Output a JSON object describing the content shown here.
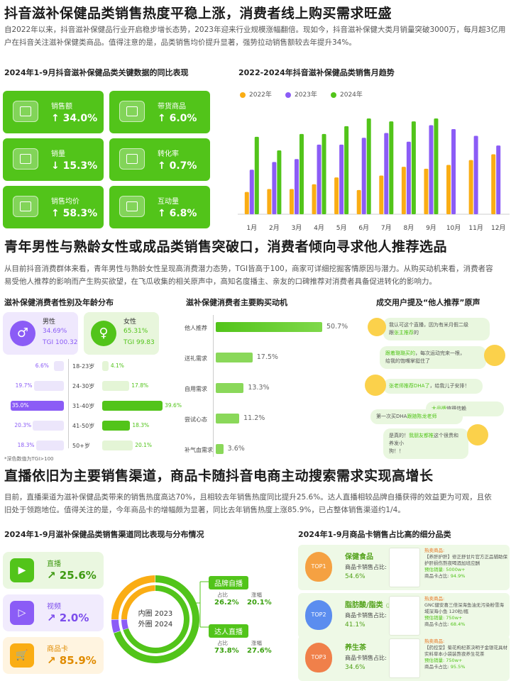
{
  "section1": {
    "title": "抖音滋补保健品类销售热度平稳上涨，消费者线上购买需求旺盛",
    "para_line1": "自2022年以来，抖音滋补保健品行业开启稳步增长态势，2023年迎来行业规模涨幅翻倍。现如今，抖音滋补保健大类月销量突破3000万，每月超3亿用",
    "para_line2": "户在抖音关注滋补保健类商品。值得注意的是，品类销售均价提升显著，强势拉动销售额较去年提升34%。",
    "kpi_title": "2024年1-9月抖音滋补保健品类关键数据的同比表现",
    "kpis": [
      {
        "label": "销售额",
        "value": "↑ 34.0%",
        "icon": "sales-icon"
      },
      {
        "label": "带货商品",
        "value": "↑ 6.0%",
        "icon": "product-icon"
      },
      {
        "label": "销量",
        "value": "↓ 15.3%",
        "icon": "volume-icon"
      },
      {
        "label": "转化率",
        "value": "↑ 0.7%",
        "icon": "conversion-icon"
      },
      {
        "label": "销售均价",
        "value": "↑ 58.3%",
        "icon": "price-icon"
      },
      {
        "label": "互动量",
        "value": "↑ 6.8%",
        "icon": "interaction-icon"
      }
    ]
  },
  "chart_data": [
    {
      "type": "bar",
      "title": "2022-2024年抖音滋补保健品类销售月趋势",
      "categories": [
        "1月",
        "2月",
        "3月",
        "4月",
        "5月",
        "6月",
        "7月",
        "8月",
        "9月",
        "10月",
        "11月",
        "12月"
      ],
      "series": [
        {
          "name": "2022年",
          "color": "#faad14",
          "values": [
            23,
            26,
            26,
            31,
            38,
            25,
            40,
            49,
            47,
            51,
            56,
            62
          ]
        },
        {
          "name": "2023年",
          "color": "#8b5cf6",
          "values": [
            46,
            54,
            57,
            72,
            72,
            79,
            84,
            75,
            92,
            88,
            81,
            71
          ]
        },
        {
          "name": "2024年",
          "color": "#52c41a",
          "values": [
            80,
            66,
            83,
            83,
            91,
            99,
            96,
            96,
            99,
            null,
            null,
            null
          ]
        }
      ],
      "ylim": [
        0,
        110
      ],
      "legend": "top",
      "grid": false
    },
    {
      "type": "bar",
      "title": "滋补保健消费者主要购买动机",
      "categories": [
        "他人推荐",
        "送礼需求",
        "自用需求",
        "尝试心态",
        "补气血需求"
      ],
      "values": [
        50.7,
        17.5,
        13.3,
        11.2,
        3.6
      ],
      "unit": "%"
    },
    {
      "type": "bar",
      "title": "滋补保健消费者性别及年龄分布",
      "categories": [
        "18-23岁",
        "24-30岁",
        "31-40岁",
        "41-50岁",
        "50+岁"
      ],
      "series": [
        {
          "name": "男性",
          "values": [
            6.6,
            19.7,
            35.0,
            20.3,
            18.3
          ]
        },
        {
          "name": "女性",
          "values": [
            4.1,
            17.8,
            39.6,
            18.3,
            20.1
          ]
        }
      ]
    },
    {
      "type": "pie",
      "title": "2024年1-9月滋补保健品类销售渠道同比表现与分布情况",
      "categories": [
        "直播",
        "视频",
        "商品卡"
      ],
      "values": [
        70,
        5,
        25
      ]
    }
  ],
  "section2": {
    "title": "青年男性与熟龄女性或成品类销售突破口，消费者倾向寻求他人推荐选品",
    "para_line1": "从目前抖音消费群体来看，青年男性与熟龄女性呈现高消费潜力态势，TGI皆高于100，商家可详细挖掘客情原因与潜力。从购买动机来看，消费者容",
    "para_line2": "易受他人推荐的影响而产生购买欲望，在飞瓜收集的相关原声中，高知名度播主、亲友的口碑推荐对消费者具备促进转化的影响力。",
    "gender_title": "滋补保健消费者性别及年龄分布",
    "male": {
      "label": "男性",
      "pct": "34.69%",
      "tgi": "TGI 100.32"
    },
    "female": {
      "label": "女性",
      "pct": "65.31%",
      "tgi": "TGI 99.83"
    },
    "age_labels": [
      "18-23岁",
      "24-30岁",
      "31-40岁",
      "41-50岁",
      "50+岁"
    ],
    "male_vals": [
      "6.6%",
      "19.7%",
      "35.0%",
      "20.3%",
      "18.3%"
    ],
    "female_vals": [
      "4.1%",
      "17.8%",
      "39.6%",
      "18.3%",
      "20.1%"
    ],
    "note": "*深色数值为TGI>100",
    "motive_title": "滋补保健消费者主要购买动机",
    "motive_labels": [
      "他人推荐",
      "送礼需求",
      "自用需求",
      "尝试心态",
      "补气血需求"
    ],
    "motive_vals": [
      "50.7%",
      "17.5%",
      "13.3%",
      "11.2%",
      "3.6%"
    ],
    "voice_title": "成交用户提及“他人推荐”原声",
    "voices": [
      {
        "a": "我认可这个直播，因为有米月假二级",
        "b": "跟",
        "hl": "张主推荐",
        "c": "的"
      },
      {
        "a": "",
        "hl": "跟着璐璐买的",
        "b": "，每次运动完来一根，",
        "c": "给我的饱嘴掌挺住了"
      },
      {
        "a": "",
        "hl": "张老师推荐DHA了",
        "b": "，给我儿子安排！",
        "c": ""
      },
      {
        "a": "第一次买DHA",
        "hl": "跟随陈龙老师",
        "b": "",
        "c": ""
      },
      {
        "a": "",
        "hl": "大品牌",
        "b": "值得信赖",
        "c": ""
      },
      {
        "a": "是真的！",
        "hl": "我朋友都推",
        "b": "这个很贵和养发小",
        "c": "狗！！"
      }
    ]
  },
  "section3": {
    "title": "直播依旧为主要销售渠道，商品卡随抖音电商主动搜索需求实现高增长",
    "para_line1": "目前，直播渠道为滋补保健品类带来的销售热度高达70%，且相较去年销售热度同比提升25.6%。达人直播相较品牌自播获得的效益更为可观，且依",
    "para_line2": "旧处于领跑地位。值得关注的是，今年商品卡的增幅颇为显著，同比去年销售热度上涨85.9%，已占整体销售渠道约1/4。",
    "channel_title": "2024年1-9月滋补保健品类销售渠道同比表现与分布情况",
    "channels": [
      {
        "name": "直播",
        "growth": "↗ 25.6%",
        "color": "#52c41a",
        "bg": "#eaf7e0",
        "icon": "live-icon"
      },
      {
        "name": "视频",
        "growth": "↗ 2.0%",
        "color": "#8b5cf6",
        "bg": "#f1ebfd",
        "icon": "video-icon"
      },
      {
        "name": "商品卡",
        "growth": "↗ 85.9%",
        "color": "#faad14",
        "bg": "#fff4e0",
        "icon": "cart-icon"
      }
    ],
    "donut_inner": "内圈 2023",
    "donut_outer": "外圈 2024",
    "self_live": {
      "tag": "品牌自播",
      "share_label": "占比",
      "growth_label": "涨幅",
      "share": "26.2%",
      "growth": "20.1%"
    },
    "kol_live": {
      "tag": "达人直播",
      "share_label": "占比",
      "growth_label": "涨幅",
      "share": "73.8%",
      "growth": "27.6%"
    },
    "top_title": "2024年1-9月商品卡销售占比高的细分品类",
    "tops": [
      {
        "badge": "TOP1",
        "category": "保健食品",
        "share_label": "商品卡销售占比:",
        "share": "54.6%",
        "color": "#f5a142",
        "hot": "热卖商品:",
        "name": "【养肝护肝】修正舒甘片官方正品辅助保护肝损伤熬夜喝酒加班应酬",
        "sales_label": "预估销量:",
        "sales": "5000w+",
        "card_label": "商品卡占比:",
        "card": "94.9%"
      },
      {
        "badge": "TOP2",
        "category": "脂肪酸/脂类",
        "category_note": "（海外）",
        "share_label": "商品卡销售占比:",
        "share": "41.1%",
        "color": "#5b8def",
        "hot": "热卖商品:",
        "name": "GNC健安喜三倍深海鱼油无污染粉雪海域深海小鱼 120粒/瓶",
        "sales_label": "预估销量:",
        "sales": "750w+",
        "card_label": "商品卡占比:",
        "card": "68.4%"
      },
      {
        "badge": "TOP3",
        "category": "养生茶",
        "share_label": "商品卡销售占比:",
        "share": "34.6%",
        "color": "#f0804a",
        "hot": "热卖商品:",
        "name": "【药控堂】菊花枸杞茶决明子金银花具材实料草本小袋装熬夜养生花茶",
        "sales_label": "预估销量:",
        "sales": "750w+",
        "card_label": "商品卡占比:",
        "card": "95.5%"
      }
    ]
  }
}
